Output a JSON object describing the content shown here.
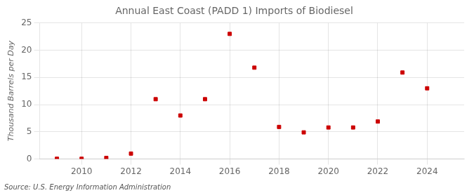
{
  "chart_data": {
    "type": "scatter",
    "title": "Annual East Coast (PADD 1) Imports of Biodiesel",
    "ylabel": "Thousand Barrels per Day",
    "source": "Source: U.S. Energy Information Administration",
    "x": [
      2009,
      2010,
      2011,
      2012,
      2013,
      2014,
      2015,
      2016,
      2017,
      2018,
      2019,
      2020,
      2021,
      2022,
      2023,
      2024
    ],
    "values": [
      0.05,
      0.05,
      0.2,
      1.0,
      11.0,
      8.0,
      11.0,
      23.0,
      16.8,
      5.9,
      4.9,
      5.8,
      5.8,
      6.9,
      15.9,
      13.0
    ],
    "color": "#cc0000",
    "marker": "square",
    "xlim": [
      2008.3,
      2025.5
    ],
    "xticks": [
      2010,
      2012,
      2014,
      2016,
      2018,
      2020,
      2022,
      2024
    ],
    "ylim": [
      0,
      25
    ],
    "yticks": [
      0,
      5,
      10,
      15,
      20,
      25
    ],
    "grid": true
  }
}
